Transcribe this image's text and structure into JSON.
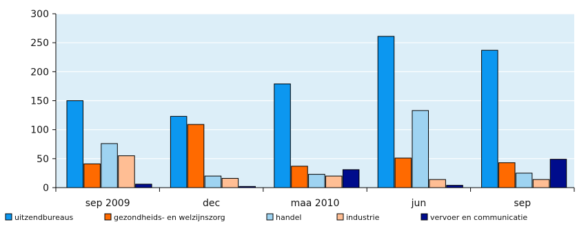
{
  "chart_data": {
    "type": "bar",
    "categories": [
      "sep 2009",
      "dec",
      "maa 2010",
      "jun",
      "sep"
    ],
    "series": [
      {
        "name": "uitzendbureaus",
        "values": [
          150,
          123,
          179,
          261,
          237
        ],
        "color": "#0C97F0"
      },
      {
        "name": "gezondheids- en welzijnszorg",
        "values": [
          41,
          109,
          37,
          51,
          43
        ],
        "color": "#FF6A00"
      },
      {
        "name": "handel",
        "values": [
          76,
          20,
          23,
          133,
          25
        ],
        "color": "#9ED3F1"
      },
      {
        "name": "industrie",
        "values": [
          55,
          16,
          20,
          14,
          14
        ],
        "color": "#FFBE94"
      },
      {
        "name": "vervoer en communicatie",
        "values": [
          6,
          2,
          31,
          4,
          49
        ],
        "color": "#000C8C"
      }
    ],
    "ylim": [
      0,
      300
    ],
    "yticks": [
      0,
      50,
      100,
      150,
      200,
      250,
      300
    ],
    "grid": true,
    "legend_position": "bottom",
    "plot_background": "#DCEEF8",
    "gridline_color": "#FFFFFF"
  }
}
